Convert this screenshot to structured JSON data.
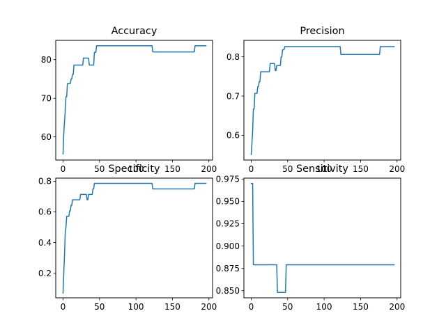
{
  "chart_data": [
    {
      "type": "line",
      "title": "Accuracy",
      "xlabel": "",
      "ylabel": "",
      "xlim": [
        -10,
        205
      ],
      "ylim": [
        54,
        85
      ],
      "x_ticks": [
        0,
        50,
        100,
        150,
        200
      ],
      "y_ticks": [
        60,
        70,
        80
      ],
      "grid": false,
      "color": "#1f77b4",
      "series": [
        {
          "points": [
            [
              0,
              55.6
            ],
            [
              1,
              61.1
            ],
            [
              2,
              63.9
            ],
            [
              3,
              66.7
            ],
            [
              4,
              70.4
            ],
            [
              5,
              70.4
            ],
            [
              6,
              73.8
            ],
            [
              10,
              73.8
            ],
            [
              11,
              75.0
            ],
            [
              12,
              75.0
            ],
            [
              13,
              76.2
            ],
            [
              14,
              76.2
            ],
            [
              15,
              78.6
            ],
            [
              27,
              78.6
            ],
            [
              28,
              80.4
            ],
            [
              35,
              80.4
            ],
            [
              36,
              78.6
            ],
            [
              42,
              78.6
            ],
            [
              43,
              81.9
            ],
            [
              45,
              81.9
            ],
            [
              46,
              83.6
            ],
            [
              122,
              83.6
            ],
            [
              123,
              82.0
            ],
            [
              180,
              82.0
            ],
            [
              181,
              83.6
            ],
            [
              196,
              83.6
            ]
          ]
        }
      ]
    },
    {
      "type": "line",
      "title": "Precision",
      "xlabel": "",
      "ylabel": "",
      "xlim": [
        -10,
        205
      ],
      "ylim": [
        0.537,
        0.842
      ],
      "x_ticks": [
        0,
        50,
        100,
        150,
        200
      ],
      "y_ticks": [
        0.6,
        0.7,
        0.8
      ],
      "grid": false,
      "color": "#1f77b4",
      "series": [
        {
          "points": [
            [
              0,
              0.551
            ],
            [
              1,
              0.58
            ],
            [
              2,
              0.61
            ],
            [
              3,
              0.667
            ],
            [
              4,
              0.667
            ],
            [
              5,
              0.707
            ],
            [
              8,
              0.707
            ],
            [
              9,
              0.724
            ],
            [
              10,
              0.724
            ],
            [
              11,
              0.737
            ],
            [
              12,
              0.737
            ],
            [
              13,
              0.762
            ],
            [
              25,
              0.762
            ],
            [
              26,
              0.783
            ],
            [
              32,
              0.783
            ],
            [
              33,
              0.765
            ],
            [
              34,
              0.765
            ],
            [
              35,
              0.778
            ],
            [
              40,
              0.778
            ],
            [
              41,
              0.8
            ],
            [
              42,
              0.8
            ],
            [
              43,
              0.818
            ],
            [
              45,
              0.818
            ],
            [
              46,
              0.826
            ],
            [
              122,
              0.826
            ],
            [
              123,
              0.806
            ],
            [
              176,
              0.806
            ],
            [
              177,
              0.826
            ],
            [
              196,
              0.826
            ]
          ]
        }
      ]
    },
    {
      "type": "line",
      "title": "Specificity",
      "xlabel": "",
      "ylabel": "",
      "xlim": [
        -10,
        205
      ],
      "ylim": [
        0.04,
        0.82
      ],
      "x_ticks": [
        0,
        50,
        100,
        150,
        200
      ],
      "y_ticks": [
        0.2,
        0.4,
        0.6,
        0.8
      ],
      "grid": false,
      "color": "#1f77b4",
      "series": [
        {
          "points": [
            [
              0,
              0.071
            ],
            [
              1,
              0.2
            ],
            [
              2,
              0.32
            ],
            [
              3,
              0.464
            ],
            [
              4,
              0.5
            ],
            [
              5,
              0.571
            ],
            [
              8,
              0.571
            ],
            [
              9,
              0.607
            ],
            [
              10,
              0.607
            ],
            [
              11,
              0.643
            ],
            [
              12,
              0.643
            ],
            [
              13,
              0.679
            ],
            [
              23,
              0.679
            ],
            [
              24,
              0.714
            ],
            [
              32,
              0.714
            ],
            [
              33,
              0.679
            ],
            [
              34,
              0.679
            ],
            [
              35,
              0.714
            ],
            [
              40,
              0.714
            ],
            [
              41,
              0.75
            ],
            [
              42,
              0.75
            ],
            [
              43,
              0.786
            ],
            [
              122,
              0.786
            ],
            [
              123,
              0.75
            ],
            [
              180,
              0.75
            ],
            [
              181,
              0.786
            ],
            [
              196,
              0.786
            ]
          ]
        }
      ]
    },
    {
      "type": "line",
      "title": "Sensitivity",
      "xlabel": "",
      "ylabel": "",
      "xlim": [
        -10,
        205
      ],
      "ylim": [
        0.842,
        0.976
      ],
      "x_ticks": [
        0,
        50,
        100,
        150,
        200
      ],
      "y_ticks": [
        0.85,
        0.875,
        0.9,
        0.925,
        0.95,
        0.975
      ],
      "y_tick_labels": [
        "0.850",
        "0.875",
        "0.900",
        "0.925",
        "0.950",
        "0.975"
      ],
      "grid": false,
      "color": "#1f77b4",
      "series": [
        {
          "points": [
            [
              0,
              0.97
            ],
            [
              2,
              0.97
            ],
            [
              3,
              0.879
            ],
            [
              35,
              0.879
            ],
            [
              36,
              0.848
            ],
            [
              47,
              0.848
            ],
            [
              48,
              0.879
            ],
            [
              196,
              0.879
            ]
          ]
        }
      ]
    }
  ]
}
